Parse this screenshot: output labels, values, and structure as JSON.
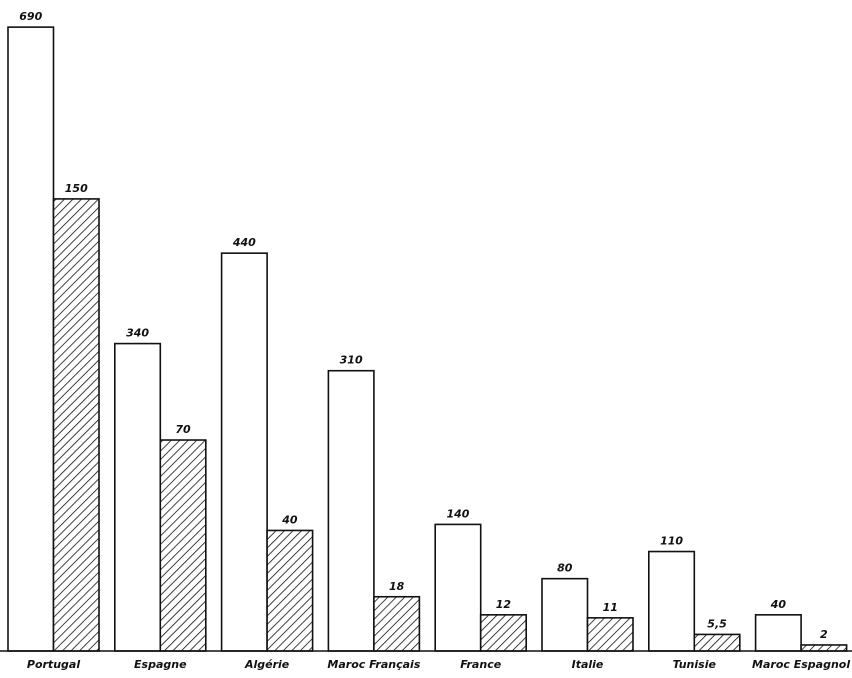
{
  "chart_data": {
    "type": "bar",
    "categories": [
      "Portugal",
      "Espagne",
      "Algérie",
      "Maroc Français",
      "France",
      "Italie",
      "Tunisie",
      "Maroc Espagnol"
    ],
    "series": [
      {
        "color": "#ffffff",
        "values": [
          690,
          340,
          440,
          310,
          140,
          80,
          110,
          40
        ]
      },
      {
        "color": "#ffffff",
        "pattern": "hatch",
        "axis": "y2",
        "values": [
          150,
          70,
          40,
          18,
          12,
          11,
          5.5,
          2
        ],
        "value_labels": [
          "150",
          "70",
          "40",
          "18",
          "12",
          "11",
          "5,5",
          "2"
        ]
      }
    ],
    "ylim": [
      0,
      720
    ],
    "y2lim": [
      0,
      216
    ]
  }
}
